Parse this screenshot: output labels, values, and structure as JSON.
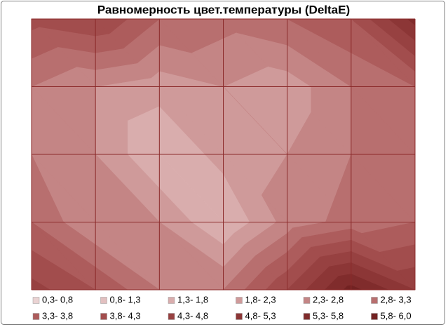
{
  "chart_data": {
    "type": "contour",
    "title": "Равномерность цвет.температуры (DeltaE)",
    "z": [
      [
        4.0,
        4.3,
        3.3,
        3.0,
        3.3,
        3.8,
        5.5
      ],
      [
        2.8,
        2.3,
        2.0,
        2.3,
        2.0,
        2.8,
        3.3
      ],
      [
        2.8,
        2.3,
        1.3,
        2.0,
        2.3,
        2.8,
        3.0
      ],
      [
        3.3,
        2.3,
        2.3,
        1.3,
        2.5,
        3.0,
        3.3
      ],
      [
        4.5,
        3.8,
        2.8,
        2.8,
        4.3,
        6.0,
        4.8
      ]
    ],
    "series": [
      {
        "name": "0,3- 0,8",
        "min": 0.3,
        "max": 0.8,
        "color": "#ead3d3"
      },
      {
        "name": "0,8- 1,3",
        "min": 0.8,
        "max": 1.3,
        "color": "#e2c0c0"
      },
      {
        "name": "1,3- 1,8",
        "min": 1.3,
        "max": 1.8,
        "color": "#d9adad"
      },
      {
        "name": "1,8- 2,3",
        "min": 1.8,
        "max": 2.3,
        "color": "#cf9a9a"
      },
      {
        "name": "2,3- 2,8",
        "min": 2.3,
        "max": 2.8,
        "color": "#c48585"
      },
      {
        "name": "2,8- 3,3",
        "min": 2.8,
        "max": 3.3,
        "color": "#b86f6f"
      },
      {
        "name": "3,3- 3,8",
        "min": 3.3,
        "max": 3.8,
        "color": "#ad5c5c"
      },
      {
        "name": "3,8- 4,3",
        "min": 3.8,
        "max": 4.3,
        "color": "#a24d4d"
      },
      {
        "name": "4,3- 4,8",
        "min": 4.3,
        "max": 4.8,
        "color": "#974141"
      },
      {
        "name": "4,8- 5,3",
        "min": 4.8,
        "max": 5.3,
        "color": "#8c3636"
      },
      {
        "name": "5,3- 5,8",
        "min": 5.3,
        "max": 5.8,
        "color": "#802c2c"
      },
      {
        "name": "5,8- 6,0",
        "min": 5.8,
        "max": 6.0,
        "color": "#722222"
      }
    ]
  }
}
